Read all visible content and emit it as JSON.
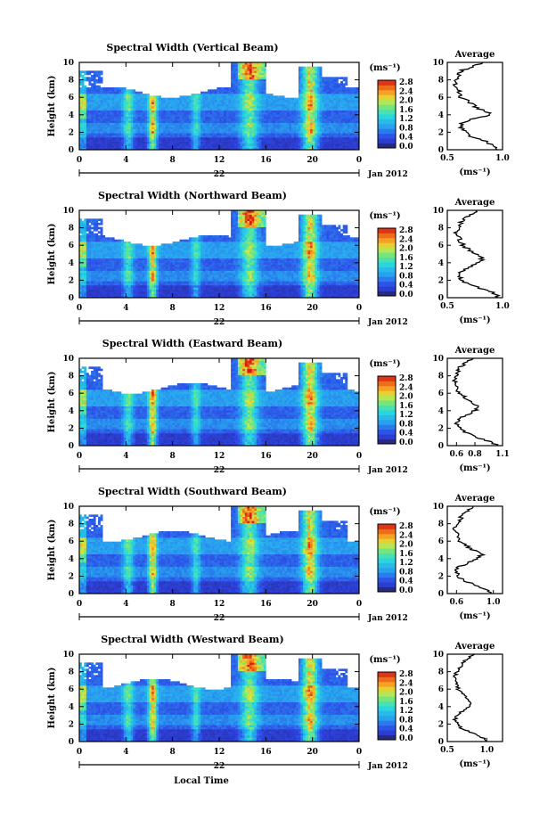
{
  "chart_data": {
    "type": "heatmap",
    "shared": {
      "ylabel": "Height (km)",
      "xticks": [
        "0",
        "4",
        "8",
        "12",
        "16",
        "20",
        "0"
      ],
      "yticks": [
        "0",
        "2",
        "4",
        "6",
        "8",
        "10"
      ],
      "day_label": "22",
      "month_label": "Jan 2012",
      "xlabel": "Local Time",
      "colorbar_unit": "(ms⁻¹)",
      "colorbar_ticks": [
        "0.0",
        "0.4",
        "0.8",
        "1.2",
        "1.6",
        "2.0",
        "2.4",
        "2.8"
      ],
      "colorbar_range": [
        0.0,
        2.8
      ],
      "avg_title": "Average",
      "avg_unit": "(ms⁻¹)",
      "height_range_km": [
        0,
        10
      ],
      "time_range_h": [
        0,
        24
      ],
      "colors": {
        "low": "#2b2fa8",
        "mid": "#1fd0e0",
        "high": "#e02010",
        "missing": "#ffffff"
      }
    },
    "panels": [
      {
        "title": "Spectral Width (Vertical Beam)",
        "avg_xticks": [
          "0.5",
          "1.0"
        ],
        "avg_xlim": [
          0.5,
          1.0
        ],
        "avg_profile": {
          "h": [
            0,
            0.5,
            1,
            1.5,
            2,
            2.5,
            3,
            3.5,
            4,
            4.5,
            5,
            5.5,
            6,
            6.5,
            7,
            7.5,
            8,
            8.5,
            9,
            9.5,
            10
          ],
          "v": [
            0.96,
            0.92,
            0.84,
            0.72,
            0.66,
            0.62,
            0.64,
            0.72,
            0.9,
            0.82,
            0.74,
            0.7,
            0.62,
            0.6,
            0.6,
            0.57,
            0.58,
            0.6,
            0.62,
            0.72,
            0.82
          ]
        }
      },
      {
        "title": "Spectral Width (Northward Beam)",
        "avg_xticks": [
          "0.5",
          "1.0"
        ],
        "avg_xlim": [
          0.5,
          1.0
        ],
        "avg_profile": {
          "h": [
            0,
            0.5,
            1,
            1.5,
            2,
            2.5,
            3,
            3.5,
            4,
            4.5,
            5,
            5.5,
            6,
            6.5,
            7,
            7.5,
            8,
            8.5,
            9,
            9.5,
            10
          ],
          "v": [
            0.97,
            0.93,
            0.82,
            0.7,
            0.63,
            0.6,
            0.62,
            0.7,
            0.78,
            0.82,
            0.76,
            0.7,
            0.64,
            0.62,
            0.6,
            0.58,
            0.6,
            0.62,
            0.64,
            0.7,
            0.78
          ]
        }
      },
      {
        "title": "Spectral Width (Eastward Beam)",
        "avg_xticks": [
          "0.6",
          "0.8",
          "1.1"
        ],
        "avg_xlim": [
          0.5,
          1.1
        ],
        "avg_profile": {
          "h": [
            0,
            0.5,
            1,
            1.5,
            2,
            2.5,
            3,
            3.5,
            4,
            4.5,
            5,
            5.5,
            6,
            6.5,
            7,
            7.5,
            8,
            8.5,
            9,
            9.5,
            10
          ],
          "v": [
            1.05,
            0.96,
            0.8,
            0.7,
            0.64,
            0.6,
            0.62,
            0.7,
            0.8,
            0.84,
            0.76,
            0.7,
            0.64,
            0.6,
            0.6,
            0.58,
            0.6,
            0.62,
            0.64,
            0.7,
            0.78
          ]
        }
      },
      {
        "title": "Spectral Width (Southward Beam)",
        "avg_xticks": [
          "0.6",
          "1.0"
        ],
        "avg_xlim": [
          0.5,
          1.1
        ],
        "avg_profile": {
          "h": [
            0,
            0.5,
            1,
            1.5,
            2,
            2.5,
            3,
            3.5,
            4,
            4.5,
            5,
            5.5,
            6,
            6.5,
            7,
            7.5,
            8,
            8.5,
            9,
            9.5,
            10
          ],
          "v": [
            0.98,
            0.92,
            0.8,
            0.68,
            0.62,
            0.6,
            0.62,
            0.72,
            0.82,
            0.88,
            0.78,
            0.7,
            0.64,
            0.62,
            0.6,
            0.58,
            0.6,
            0.64,
            0.66,
            0.72,
            0.8
          ]
        }
      },
      {
        "title": "Spectral Width (Westward Beam)",
        "avg_xticks": [
          "0.5",
          "1.0"
        ],
        "avg_xlim": [
          0.5,
          1.2
        ],
        "avg_profile": {
          "h": [
            0,
            0.5,
            1,
            1.5,
            2,
            2.5,
            3,
            3.5,
            4,
            4.5,
            5,
            5.5,
            6,
            6.5,
            7,
            7.5,
            8,
            8.5,
            9,
            9.5,
            10
          ],
          "v": [
            1.0,
            0.94,
            0.8,
            0.68,
            0.62,
            0.6,
            0.62,
            0.7,
            0.78,
            0.8,
            0.74,
            0.68,
            0.64,
            0.62,
            0.62,
            0.6,
            0.62,
            0.66,
            0.7,
            0.76,
            0.84
          ]
        }
      }
    ]
  }
}
